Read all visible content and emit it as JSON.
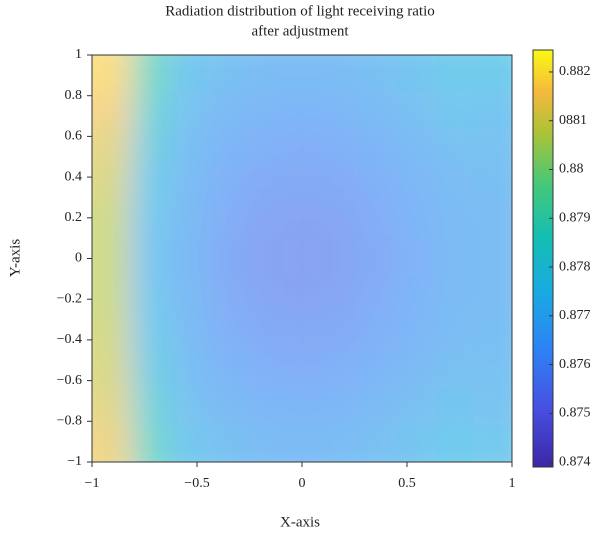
{
  "chart_data": {
    "type": "heatmap",
    "title": [
      "Radiation distribution of light receiving ratio",
      "after adjustment"
    ],
    "xlabel": "X-axis",
    "ylabel": "Y-axis",
    "xlim": [
      -1,
      1
    ],
    "ylim": [
      -1,
      1
    ],
    "xticks": [
      {
        "value": -1,
        "label": "−1"
      },
      {
        "value": -0.5,
        "label": "−0.5"
      },
      0,
      0.5,
      1
    ],
    "yticks": [
      {
        "value": -1,
        "label": "−1"
      },
      {
        "value": -0.8,
        "label": "−0.8"
      },
      {
        "value": -0.6,
        "label": "−0.6"
      },
      {
        "value": -0.4,
        "label": "−0.4"
      },
      {
        "value": -0.2,
        "label": "−0.2"
      },
      0,
      0.2,
      0.4,
      0.6,
      0.8,
      1
    ],
    "clim": [
      0.8739,
      0.88245
    ],
    "cticks": [
      0.874,
      0.875,
      0.876,
      0.877,
      0.878,
      0.879,
      0.88,
      {
        "value": 0.881,
        "label": "0881"
      },
      0.882
    ],
    "colormap": "parula",
    "z": [
      [
        0.8818,
        0.879,
        0.8773,
        0.877,
        0.8768,
        0.8768,
        0.8768,
        0.877,
        0.8772,
        0.8776,
        0.8775
      ],
      [
        0.8815,
        0.8785,
        0.8771,
        0.8767,
        0.8765,
        0.8764,
        0.8765,
        0.8767,
        0.877,
        0.8773,
        0.8772
      ],
      [
        0.8812,
        0.878,
        0.8769,
        0.8764,
        0.8762,
        0.8761,
        0.8762,
        0.8764,
        0.8767,
        0.877,
        0.877
      ],
      [
        0.881,
        0.8776,
        0.8768,
        0.8762,
        0.876,
        0.8759,
        0.876,
        0.8762,
        0.8765,
        0.8768,
        0.8769
      ],
      [
        0.8808,
        0.8774,
        0.8767,
        0.8761,
        0.8758,
        0.8757,
        0.8758,
        0.8761,
        0.8764,
        0.8767,
        0.8768
      ],
      [
        0.8808,
        0.8773,
        0.8766,
        0.876,
        0.8757,
        0.8756,
        0.8757,
        0.876,
        0.8763,
        0.8767,
        0.8768
      ],
      [
        0.8808,
        0.8774,
        0.8767,
        0.8761,
        0.8758,
        0.8757,
        0.8758,
        0.8761,
        0.8764,
        0.8767,
        0.8768
      ],
      [
        0.8809,
        0.8776,
        0.8768,
        0.8762,
        0.876,
        0.8759,
        0.876,
        0.8762,
        0.8765,
        0.8768,
        0.8769
      ],
      [
        0.881,
        0.8779,
        0.8769,
        0.8764,
        0.8762,
        0.8761,
        0.8762,
        0.8764,
        0.8767,
        0.877,
        0.877
      ],
      [
        0.8812,
        0.8783,
        0.8771,
        0.8767,
        0.8765,
        0.8764,
        0.8765,
        0.8767,
        0.877,
        0.8772,
        0.8771
      ],
      [
        0.8814,
        0.8788,
        0.8773,
        0.877,
        0.8768,
        0.8767,
        0.8768,
        0.877,
        0.8772,
        0.8775,
        0.8774
      ]
    ]
  }
}
